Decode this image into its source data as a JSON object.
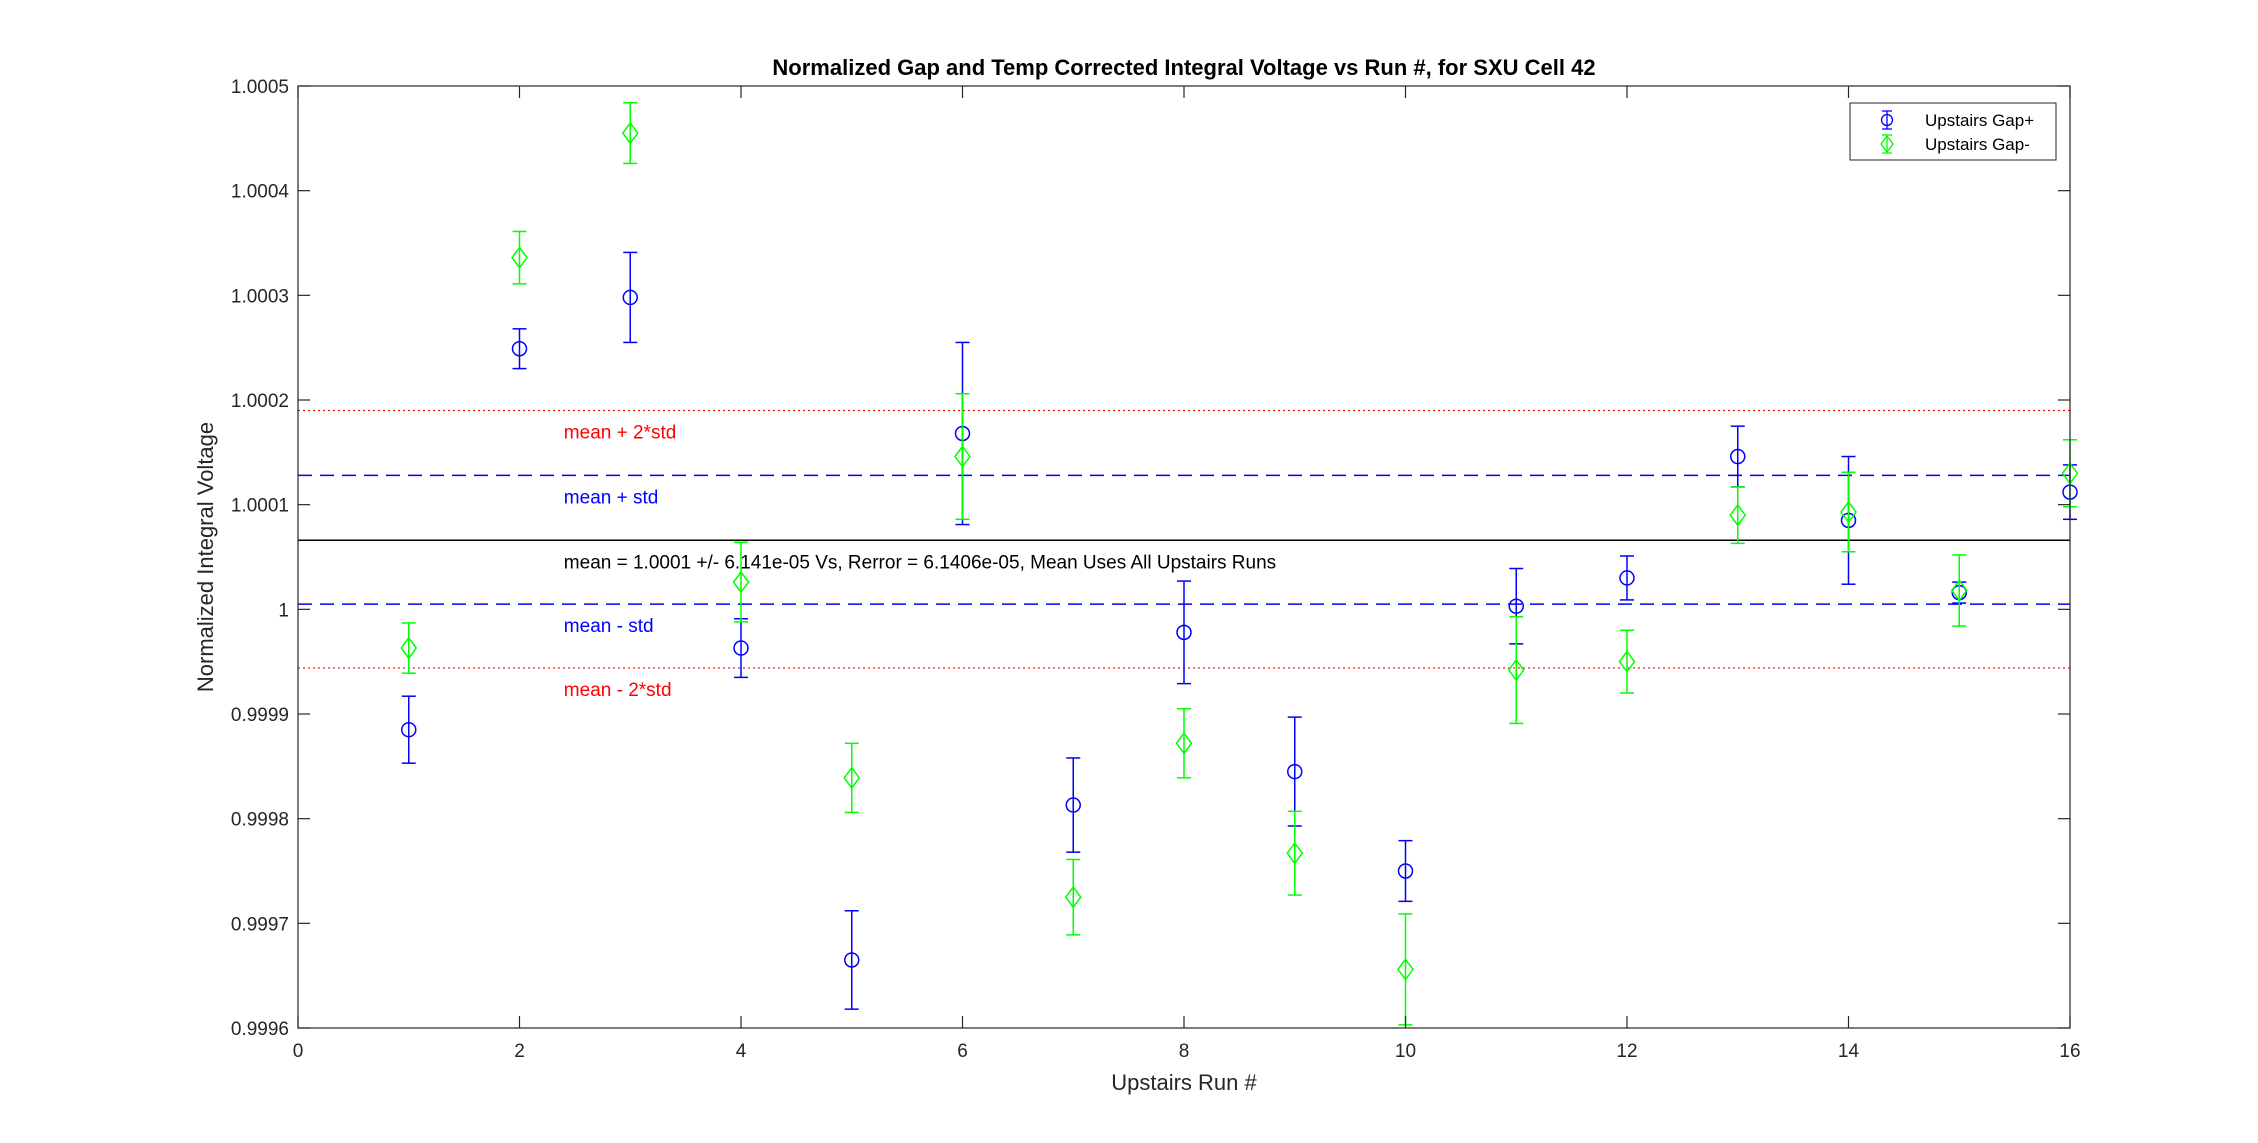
{
  "chart_data": {
    "type": "scatter",
    "title": "Normalized Gap and Temp Corrected Integral Voltage vs Run #, for SXU Cell 42",
    "xlabel": "Upstairs Run #",
    "ylabel": "Normalized Integral Voltage",
    "xlim": [
      0,
      16
    ],
    "ylim": [
      0.9996,
      1.0005
    ],
    "xticks": [
      0,
      2,
      4,
      6,
      8,
      10,
      12,
      14,
      16
    ],
    "xtick_labels": [
      "0",
      "2",
      "4",
      "6",
      "8",
      "10",
      "12",
      "14",
      "16"
    ],
    "yticks": [
      0.9996,
      0.9997,
      0.9998,
      0.9999,
      1.0,
      1.0001,
      1.0002,
      1.0003,
      1.0004,
      1.0005
    ],
    "ytick_labels": [
      "0.9996",
      "0.9997",
      "0.9998",
      "0.9999",
      "1",
      "1.0001",
      "1.0002",
      "1.0003",
      "1.0004",
      "1.0005"
    ],
    "grid": false,
    "legend_position": "top-right",
    "series": [
      {
        "name": "Upstairs Gap+",
        "marker": "circle",
        "color": "#0000ff",
        "x": [
          1,
          2,
          3,
          4,
          5,
          6,
          7,
          8,
          9,
          10,
          11,
          12,
          13,
          14,
          15,
          16
        ],
        "y": [
          0.999885,
          1.000249,
          1.000298,
          0.999963,
          0.999665,
          1.000168,
          0.999813,
          0.999978,
          0.999845,
          0.99975,
          1.000003,
          1.00003,
          1.000146,
          1.000085,
          1.000016,
          1.000112
        ],
        "err": [
          3.2e-05,
          1.9e-05,
          4.3e-05,
          2.8e-05,
          4.7e-05,
          8.7e-05,
          4.5e-05,
          4.9e-05,
          5.2e-05,
          2.9e-05,
          3.6e-05,
          2.1e-05,
          2.9e-05,
          6.1e-05,
          1e-05,
          2.6e-05
        ]
      },
      {
        "name": "Upstairs Gap-",
        "marker": "diamond",
        "color": "#00ff00",
        "x": [
          1,
          2,
          3,
          4,
          5,
          6,
          7,
          8,
          9,
          10,
          11,
          12,
          13,
          14,
          15,
          16
        ],
        "y": [
          0.999963,
          1.000336,
          1.000455,
          1.000026,
          0.999839,
          1.000146,
          0.999725,
          0.999872,
          0.999767,
          0.999656,
          0.999942,
          0.99995,
          1.00009,
          1.000093,
          1.000018,
          1.00013
        ],
        "err": [
          2.4e-05,
          2.5e-05,
          2.9e-05,
          3.8e-05,
          3.3e-05,
          6e-05,
          3.6e-05,
          3.3e-05,
          4e-05,
          5.3e-05,
          5.1e-05,
          3e-05,
          2.7e-05,
          3.8e-05,
          3.4e-05,
          3.2e-05
        ]
      }
    ],
    "reference_lines": [
      {
        "y": 1.00019,
        "style": "dotted",
        "color": "#ff0000",
        "label": "mean + 2*std"
      },
      {
        "y": 1.000128,
        "style": "dashed",
        "color": "#0000ff",
        "label": "mean + std"
      },
      {
        "y": 1.000066,
        "style": "solid",
        "color": "#000000",
        "label": "mean = 1.0001 +/- 6.141e-05 Vs, Rerror = 6.1406e-05, Mean Uses All Upstairs Runs"
      },
      {
        "y": 1.000005,
        "style": "dashed",
        "color": "#0000ff",
        "label": "mean - std"
      },
      {
        "y": 0.999944,
        "style": "dotted",
        "color": "#ff0000",
        "label": "mean - 2*std"
      }
    ],
    "annotation_x": 2.4
  }
}
